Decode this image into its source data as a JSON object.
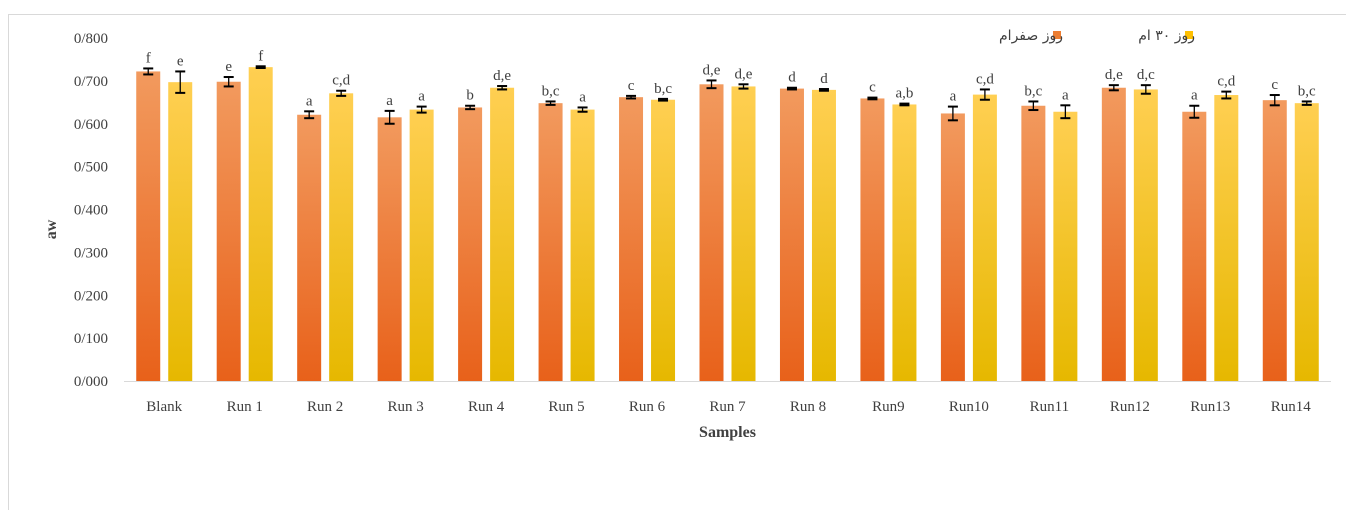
{
  "chart_data": {
    "type": "bar",
    "title": "",
    "xlabel": "Samples",
    "ylabel": "aw",
    "ylim": [
      0,
      0.8
    ],
    "yticks": [
      0,
      0.1,
      0.2,
      0.3,
      0.4,
      0.5,
      0.6,
      0.7,
      0.8
    ],
    "ytick_labels": [
      "0/000",
      "0/100",
      "0/200",
      "0/300",
      "0/400",
      "0/500",
      "0/600",
      "0/700",
      "0/800"
    ],
    "grid": false,
    "legend_position": "top-right",
    "categories": [
      "Blank",
      "Run 1",
      "Run 2",
      "Run 3",
      "Run 4",
      "Run 5",
      "Run 6",
      "Run 7",
      "Run 8",
      "Run9",
      "Run10",
      "Run11",
      "Run12",
      "Run13",
      "Run14"
    ],
    "series": [
      {
        "name": "روز صفرام",
        "color": "#ED7D31",
        "values": [
          0.722,
          0.698,
          0.621,
          0.615,
          0.638,
          0.648,
          0.662,
          0.692,
          0.682,
          0.659,
          0.624,
          0.642,
          0.684,
          0.628,
          0.655
        ],
        "errors": [
          0.007,
          0.011,
          0.008,
          0.015,
          0.004,
          0.004,
          0.003,
          0.009,
          0.002,
          0.002,
          0.016,
          0.01,
          0.006,
          0.014,
          0.012
        ],
        "annotations": [
          "f",
          "e",
          "a",
          "a",
          "b",
          "b,c",
          "c",
          "d,e",
          "d",
          "c",
          "a",
          "b,c",
          "d,e",
          "a",
          "c"
        ]
      },
      {
        "name": "روز ۳۰ ام",
        "color": "#FFC000",
        "values": [
          0.697,
          0.732,
          0.671,
          0.633,
          0.684,
          0.633,
          0.656,
          0.687,
          0.679,
          0.645,
          0.668,
          0.628,
          0.68,
          0.667,
          0.648
        ],
        "errors": [
          0.025,
          0.002,
          0.006,
          0.007,
          0.004,
          0.005,
          0.002,
          0.005,
          0.002,
          0.002,
          0.012,
          0.015,
          0.01,
          0.008,
          0.004
        ],
        "annotations": [
          "e",
          "f",
          "c,d",
          "a",
          "d,e",
          "a",
          "b,c",
          "d,e",
          "d",
          "a,b",
          "c,d",
          "a",
          "d,c",
          "c,d",
          "b,c"
        ]
      }
    ]
  }
}
